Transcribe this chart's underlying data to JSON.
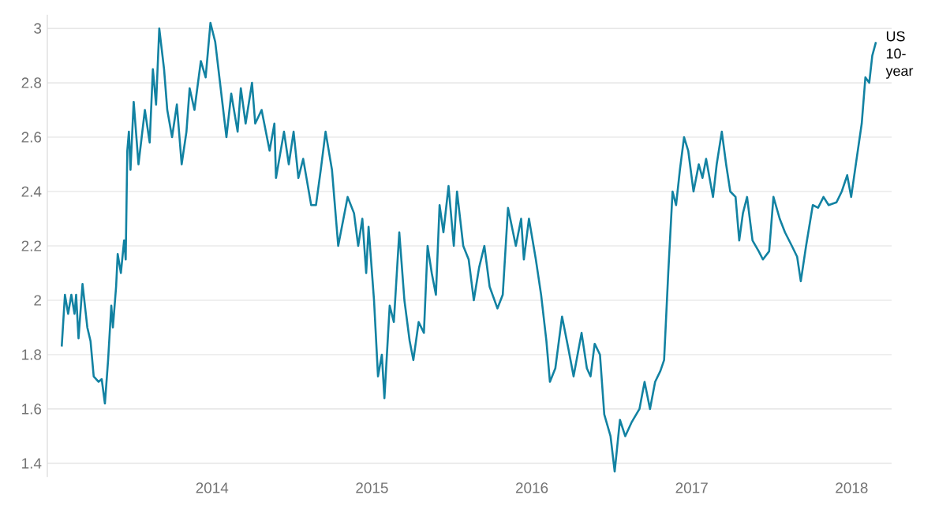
{
  "chart_data": {
    "type": "line",
    "color": "#1282a2",
    "grid": "y",
    "marker": "none",
    "line_style": "solid",
    "xlim": [
      2012.97,
      2018.25
    ],
    "ylim": [
      1.35,
      3.05
    ],
    "xticks": [
      2014,
      2015,
      2016,
      2017,
      2018
    ],
    "yticks": [
      1.4,
      1.6,
      1.8,
      2,
      2.2,
      2.4,
      2.6,
      2.8,
      3
    ],
    "annotations": [
      {
        "text": "US 10-year",
        "x": 2018.152,
        "y": 2.95
      }
    ],
    "x": [
      2013.06,
      2013.08,
      2013.1,
      2013.12,
      2013.14,
      2013.15,
      2013.165,
      2013.19,
      2013.22,
      2013.24,
      2013.26,
      2013.29,
      2013.31,
      2013.33,
      2013.35,
      2013.37,
      2013.38,
      2013.4,
      2013.41,
      2013.43,
      2013.45,
      2013.46,
      2013.47,
      2013.48,
      2013.49,
      2013.51,
      2013.54,
      2013.56,
      2013.58,
      2013.61,
      2013.63,
      2013.65,
      2013.67,
      2013.7,
      2013.72,
      2013.75,
      2013.78,
      2013.81,
      2013.84,
      2013.86,
      2013.89,
      2013.93,
      2013.96,
      2013.99,
      2014.02,
      2014.04,
      2014.09,
      2014.12,
      2014.16,
      2014.18,
      2014.21,
      2014.25,
      2014.27,
      2014.31,
      2014.36,
      2014.39,
      2014.4,
      2014.45,
      2014.48,
      2014.51,
      2014.54,
      2014.57,
      2014.62,
      2014.65,
      2014.68,
      2014.71,
      2014.75,
      2014.789,
      2014.848,
      2014.888,
      2014.914,
      2014.94,
      2014.964,
      2014.979,
      2015.013,
      2015.038,
      2015.062,
      2015.078,
      2015.111,
      2015.137,
      2015.171,
      2015.203,
      2015.236,
      2015.259,
      2015.292,
      2015.325,
      2015.348,
      2015.374,
      2015.4,
      2015.423,
      2015.447,
      2015.479,
      2015.512,
      2015.532,
      2015.571,
      2015.605,
      2015.637,
      2015.67,
      2015.703,
      2015.736,
      2015.785,
      2015.818,
      2015.851,
      2015.9,
      2015.933,
      2015.95,
      2015.982,
      2016.025,
      2016.058,
      2016.091,
      2016.113,
      2016.147,
      2016.189,
      2016.229,
      2016.261,
      2016.311,
      2016.344,
      2016.367,
      2016.393,
      2016.426,
      2016.453,
      2016.492,
      2016.518,
      2016.551,
      2016.584,
      2016.623,
      2016.673,
      2016.705,
      2016.739,
      2016.771,
      2016.804,
      2016.827,
      2016.853,
      2016.88,
      2016.902,
      2016.926,
      2016.952,
      2016.978,
      2017.011,
      2017.044,
      2017.067,
      2017.09,
      2017.133,
      2017.156,
      2017.188,
      2017.215,
      2017.241,
      2017.274,
      2017.297,
      2017.32,
      2017.346,
      2017.38,
      2017.419,
      2017.445,
      2017.484,
      2017.511,
      2017.55,
      2017.583,
      2017.626,
      2017.659,
      2017.682,
      2017.715,
      2017.757,
      2017.79,
      2017.824,
      2017.856,
      2017.905,
      2017.938,
      2017.972,
      2017.997,
      2018.031,
      2018.063,
      2018.086,
      2018.11,
      2018.129,
      2018.152
    ],
    "values": [
      1.83,
      2.02,
      1.95,
      2.02,
      1.95,
      2.02,
      1.86,
      2.06,
      1.9,
      1.85,
      1.72,
      1.7,
      1.71,
      1.62,
      1.78,
      1.98,
      1.9,
      2.05,
      2.17,
      2.1,
      2.22,
      2.15,
      2.55,
      2.62,
      2.48,
      2.73,
      2.5,
      2.6,
      2.7,
      2.58,
      2.85,
      2.72,
      3.0,
      2.85,
      2.7,
      2.6,
      2.72,
      2.5,
      2.62,
      2.78,
      2.7,
      2.88,
      2.82,
      3.02,
      2.95,
      2.85,
      2.6,
      2.76,
      2.62,
      2.78,
      2.65,
      2.8,
      2.65,
      2.7,
      2.55,
      2.65,
      2.45,
      2.62,
      2.5,
      2.62,
      2.45,
      2.52,
      2.35,
      2.35,
      2.48,
      2.62,
      2.48,
      2.2,
      2.38,
      2.32,
      2.2,
      2.3,
      2.1,
      2.27,
      2.0,
      1.72,
      1.8,
      1.64,
      1.98,
      1.92,
      2.25,
      2.0,
      1.85,
      1.78,
      1.92,
      1.88,
      2.2,
      2.1,
      2.02,
      2.35,
      2.25,
      2.42,
      2.2,
      2.4,
      2.2,
      2.15,
      2.0,
      2.12,
      2.2,
      2.05,
      1.97,
      2.02,
      2.34,
      2.2,
      2.3,
      2.15,
      2.3,
      2.15,
      2.02,
      1.85,
      1.7,
      1.75,
      1.94,
      1.82,
      1.72,
      1.88,
      1.75,
      1.72,
      1.84,
      1.8,
      1.58,
      1.5,
      1.37,
      1.56,
      1.5,
      1.55,
      1.6,
      1.7,
      1.6,
      1.7,
      1.74,
      1.78,
      2.1,
      2.4,
      2.35,
      2.48,
      2.6,
      2.55,
      2.4,
      2.5,
      2.45,
      2.52,
      2.38,
      2.5,
      2.62,
      2.5,
      2.4,
      2.38,
      2.22,
      2.32,
      2.38,
      2.22,
      2.18,
      2.15,
      2.18,
      2.38,
      2.3,
      2.25,
      2.2,
      2.16,
      2.07,
      2.2,
      2.35,
      2.34,
      2.38,
      2.35,
      2.36,
      2.4,
      2.46,
      2.38,
      2.52,
      2.65,
      2.82,
      2.8,
      2.9,
      2.95
    ]
  }
}
